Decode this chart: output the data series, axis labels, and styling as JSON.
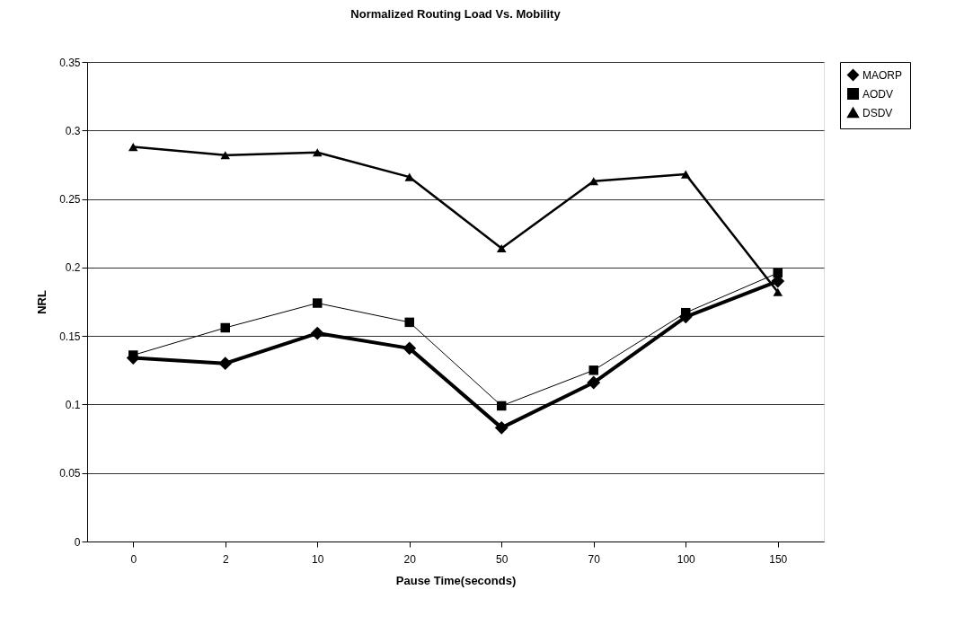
{
  "chart_data": {
    "type": "line",
    "title": "Normalized Routing Load Vs. Mobility",
    "xlabel": "Pause Time(seconds)",
    "ylabel": "NRL",
    "categories": [
      "0",
      "2",
      "10",
      "20",
      "50",
      "70",
      "100",
      "150"
    ],
    "series": [
      {
        "name": "MAORP",
        "color": "#000000",
        "marker": "diamond",
        "values": [
          0.134,
          0.13,
          0.152,
          0.141,
          0.083,
          0.116,
          0.164,
          0.19
        ]
      },
      {
        "name": "AODV",
        "color": "#000000",
        "marker": "square",
        "values": [
          0.136,
          0.156,
          0.174,
          0.16,
          0.099,
          0.125,
          0.167,
          0.196
        ]
      },
      {
        "name": "DSDV",
        "color": "#000000",
        "marker": "triangle",
        "values": [
          0.288,
          0.282,
          0.284,
          0.266,
          0.214,
          0.263,
          0.268,
          0.182
        ]
      }
    ],
    "ylim": [
      0,
      0.35
    ],
    "yticks": [
      0,
      0.05,
      0.1,
      0.15,
      0.2,
      0.25,
      0.3,
      0.35
    ],
    "grid": "y",
    "legend": "right",
    "line_style": "solid"
  }
}
